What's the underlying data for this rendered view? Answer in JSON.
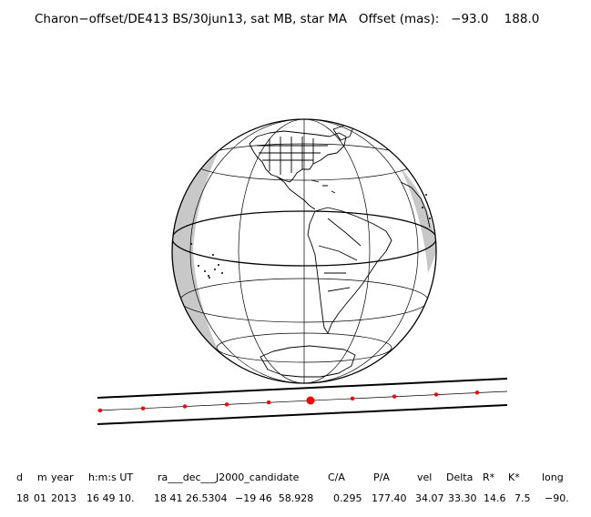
{
  "title": "Charon−offset/DE413 BS/30jun13, sat MB, star MA   Offset (mas):   −93.0    188.0",
  "map": {
    "projection": "orthographic",
    "colors": {
      "outline": "#000000",
      "night_shade": "#c8c8c8",
      "track": "#000000",
      "path_point": "#ff0000"
    },
    "path_points": 10,
    "highlight_point_index": 5
  },
  "table": {
    "headers": [
      "d",
      "m",
      "year",
      "h:m:s UT",
      "ra___dec___J2000_candidate",
      "C/A",
      "P/A",
      "vel",
      "Delta",
      "R*",
      "K*",
      "long"
    ],
    "row": [
      "18",
      "01",
      "2013",
      "16 49 10.",
      "18 41 26.5304",
      "−19 46  58.928",
      "0.295",
      "177.40",
      "34.07",
      "33.30",
      "14.6",
      "7.5",
      "−90."
    ]
  }
}
